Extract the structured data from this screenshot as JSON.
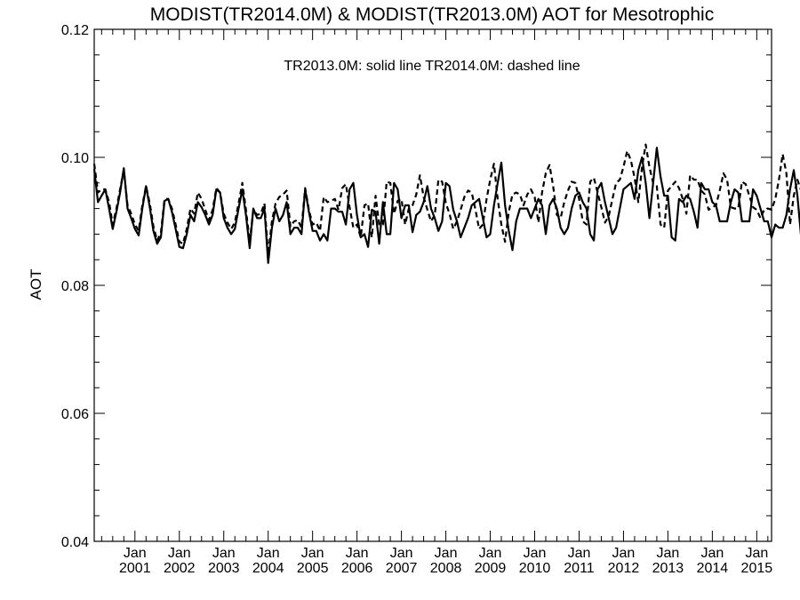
{
  "chart_data": {
    "type": "line",
    "title": "MODIST(TR2014.0M) & MODIST(TR2013.0M)  AOT for Mesotrophic",
    "annotation": "TR2013.0M: solid line   TR2014.0M: dashed line",
    "xlabel": "",
    "ylabel": "AOT",
    "ylim": [
      0.04,
      0.12
    ],
    "yticks": [
      "0.04",
      "0.06",
      "0.08",
      "0.10",
      "0.12"
    ],
    "xlim": [
      "2000-02",
      "2015-05"
    ],
    "xticks": [
      {
        "month": "Jan",
        "year": "2001",
        "date": "2001-01"
      },
      {
        "month": "Jan",
        "year": "2002",
        "date": "2002-01"
      },
      {
        "month": "Jan",
        "year": "2003",
        "date": "2003-01"
      },
      {
        "month": "Jan",
        "year": "2004",
        "date": "2004-01"
      },
      {
        "month": "Jan",
        "year": "2005",
        "date": "2005-01"
      },
      {
        "month": "Jan",
        "year": "2006",
        "date": "2006-01"
      },
      {
        "month": "Jan",
        "year": "2007",
        "date": "2007-01"
      },
      {
        "month": "Jan",
        "year": "2008",
        "date": "2008-01"
      },
      {
        "month": "Jan",
        "year": "2009",
        "date": "2009-01"
      },
      {
        "month": "Jan",
        "year": "2010",
        "date": "2010-01"
      },
      {
        "month": "Jan",
        "year": "2011",
        "date": "2011-01"
      },
      {
        "month": "Jan",
        "year": "2012",
        "date": "2012-01"
      },
      {
        "month": "Jan",
        "year": "2013",
        "date": "2013-01"
      },
      {
        "month": "Jan",
        "year": "2014",
        "date": "2014-01"
      },
      {
        "month": "Jan",
        "year": "2015",
        "date": "2015-01"
      }
    ],
    "grid": false,
    "x_start": "2000-02",
    "series": [
      {
        "name": "TR2013.0M",
        "style": "solid",
        "color": "#000000",
        "values": [
          0.0982,
          0.093,
          0.094,
          0.095,
          0.092,
          0.0888,
          0.0915,
          0.0945,
          0.0983,
          0.092,
          0.0905,
          0.0888,
          0.0878,
          0.092,
          0.0955,
          0.0922,
          0.0885,
          0.0865,
          0.0875,
          0.0932,
          0.0935,
          0.0915,
          0.0888,
          0.086,
          0.0858,
          0.088,
          0.091,
          0.09,
          0.093,
          0.0922,
          0.091,
          0.0895,
          0.091,
          0.095,
          0.0945,
          0.0905,
          0.089,
          0.088,
          0.0888,
          0.092,
          0.095,
          0.091,
          0.0858,
          0.092,
          0.0905,
          0.0905,
          0.092,
          0.0835,
          0.089,
          0.092,
          0.09,
          0.091,
          0.093,
          0.088,
          0.089,
          0.089,
          0.088,
          0.095,
          0.0915,
          0.0885,
          0.0885,
          0.087,
          0.088,
          0.087,
          0.092,
          0.092,
          0.0915,
          0.0915,
          0.0895,
          0.095,
          0.096,
          0.091,
          0.0875,
          0.088,
          0.086,
          0.0918,
          0.0915,
          0.0865,
          0.093,
          0.088,
          0.088,
          0.096,
          0.095,
          0.0905,
          0.0925,
          0.0925,
          0.0883,
          0.091,
          0.0915,
          0.093,
          0.0955,
          0.092,
          0.0905,
          0.0885,
          0.09,
          0.096,
          0.0955,
          0.0918,
          0.09,
          0.0875,
          0.089,
          0.0905,
          0.0925,
          0.093,
          0.0935,
          0.0905,
          0.0875,
          0.088,
          0.0925,
          0.096,
          0.0992,
          0.0925,
          0.0885,
          0.0855,
          0.09,
          0.092,
          0.092,
          0.092,
          0.0905,
          0.092,
          0.0935,
          0.0925,
          0.088,
          0.0925,
          0.0935,
          0.092,
          0.089,
          0.088,
          0.089,
          0.092,
          0.094,
          0.0945,
          0.093,
          0.092,
          0.088,
          0.087,
          0.095,
          0.096,
          0.093,
          0.0905,
          0.088,
          0.089,
          0.092,
          0.095,
          0.0955,
          0.096,
          0.0935,
          0.098,
          0.1,
          0.096,
          0.0905,
          0.096,
          0.1015,
          0.097,
          0.094,
          0.094,
          0.0875,
          0.087,
          0.0935,
          0.093,
          0.094,
          0.0935,
          0.0915,
          0.089,
          0.096,
          0.095,
          0.095,
          0.093,
          0.0925,
          0.09,
          0.09,
          0.09,
          0.093,
          0.095,
          0.0945,
          0.09,
          0.09,
          0.09,
          0.095,
          0.094,
          0.092,
          0.09,
          0.09,
          0.0875,
          0.0895,
          0.089,
          0.089,
          0.091,
          0.095,
          0.098,
          0.094,
          0.0875,
          0.093,
          0.0955,
          0.093,
          0.093,
          0.087,
          0.0865,
          0.0868,
          0.09,
          0.095
        ]
      },
      {
        "name": "TR2014.0M",
        "style": "dashed",
        "color": "#000000",
        "values": [
          0.099,
          0.0945,
          0.095,
          0.095,
          0.093,
          0.0895,
          0.092,
          0.095,
          0.098,
          0.0925,
          0.0912,
          0.0895,
          0.0885,
          0.0925,
          0.0955,
          0.0928,
          0.0892,
          0.087,
          0.0882,
          0.0935,
          0.0935,
          0.092,
          0.0895,
          0.0868,
          0.0865,
          0.0888,
          0.092,
          0.0912,
          0.0945,
          0.0935,
          0.0918,
          0.0902,
          0.0918,
          0.0952,
          0.0945,
          0.0912,
          0.0898,
          0.0888,
          0.0898,
          0.0928,
          0.096,
          0.0918,
          0.0868,
          0.0918,
          0.091,
          0.0912,
          0.0928,
          0.0848,
          0.09,
          0.0928,
          0.0938,
          0.0942,
          0.0948,
          0.0892,
          0.09,
          0.0902,
          0.089,
          0.0952,
          0.0918,
          0.0895,
          0.0898,
          0.0885,
          0.0938,
          0.093,
          0.0932,
          0.0935,
          0.0918,
          0.0952,
          0.0958,
          0.0922,
          0.089,
          0.0895,
          0.0875,
          0.0925,
          0.0928,
          0.0875,
          0.094,
          0.0895,
          0.0895,
          0.0962,
          0.096,
          0.0912,
          0.0932,
          0.0935,
          0.0895,
          0.092,
          0.0925,
          0.0942,
          0.0972,
          0.0938,
          0.0918,
          0.09,
          0.091,
          0.0965,
          0.0962,
          0.0928,
          0.0912,
          0.0888,
          0.09,
          0.0918,
          0.0938,
          0.0948,
          0.0945,
          0.0918,
          0.0888,
          0.0895,
          0.0935,
          0.0965,
          0.099,
          0.0935,
          0.0895,
          0.0868,
          0.0915,
          0.0942,
          0.0945,
          0.0942,
          0.0925,
          0.0942,
          0.095,
          0.0938,
          0.0898,
          0.0945,
          0.0975,
          0.0988,
          0.0955,
          0.091,
          0.0905,
          0.093,
          0.0948,
          0.0962,
          0.096,
          0.0935,
          0.09,
          0.0895,
          0.0962,
          0.0968,
          0.0945,
          0.0922,
          0.0898,
          0.0908,
          0.0935,
          0.096,
          0.0965,
          0.0985,
          0.101,
          0.0995,
          0.0968,
          0.093,
          0.0985,
          0.102,
          0.0985,
          0.096,
          0.0955,
          0.0895,
          0.089,
          0.0948,
          0.0955,
          0.0962,
          0.0952,
          0.0935,
          0.0912,
          0.0972,
          0.0965,
          0.0965,
          0.0948,
          0.0942,
          0.0918,
          0.0922,
          0.0925,
          0.0948,
          0.0975,
          0.0965,
          0.0922,
          0.092,
          0.092,
          0.0962,
          0.0958,
          0.094,
          0.0922,
          0.0918,
          0.0905,
          0.0918,
          0.092,
          0.0918,
          0.0935,
          0.0965,
          0.1005,
          0.0975,
          0.0895,
          0.094,
          0.0965,
          0.0948,
          0.094,
          0.089,
          0.0885,
          0.0895,
          0.0928,
          0.0995
        ]
      }
    ]
  }
}
